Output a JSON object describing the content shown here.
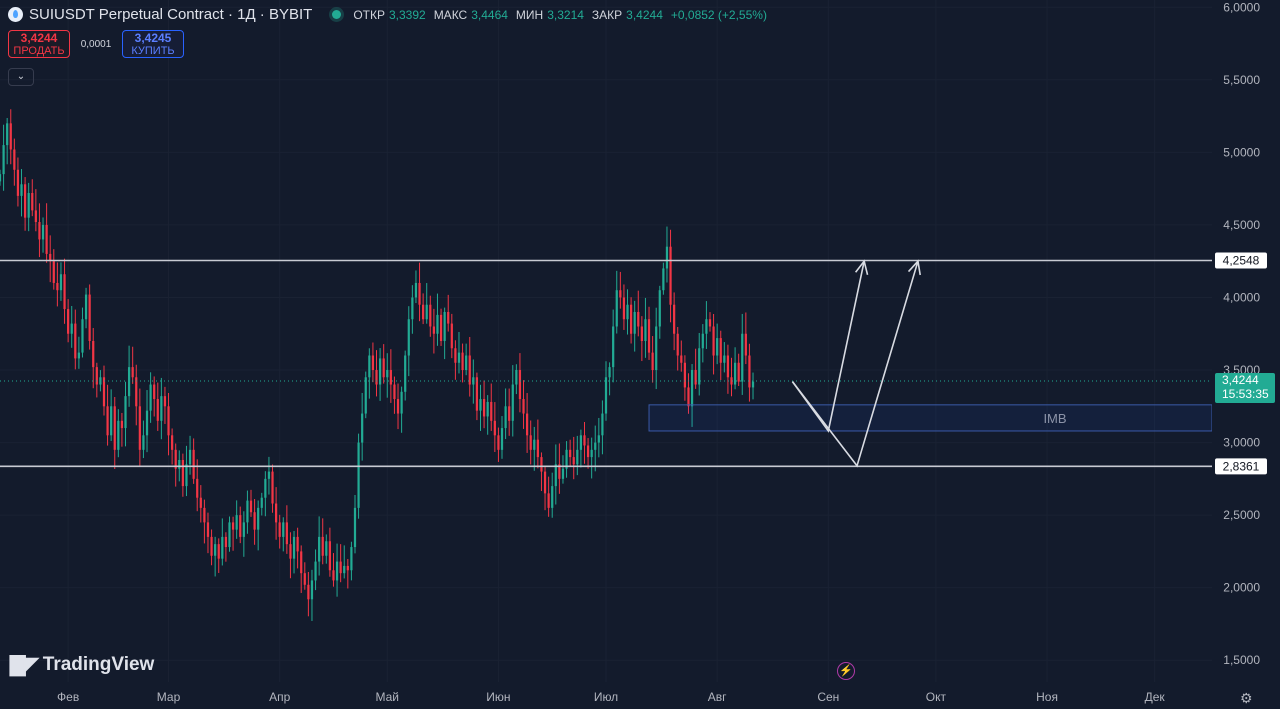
{
  "header": {
    "symbol": "SUIUSDT Perpetual Contract · 1Д · BYBIT",
    "ohlc": [
      {
        "label": "ОТКР",
        "value": "3,3392"
      },
      {
        "label": "МАКС",
        "value": "3,4464"
      },
      {
        "label": "МИН",
        "value": "3,3214"
      },
      {
        "label": "ЗАКР",
        "value": "3,4244"
      }
    ],
    "change": "+0,0852 (+2,55%)"
  },
  "trade": {
    "sell_price": "3,4244",
    "sell_label": "ПРОДАТЬ",
    "spread": "0,0001",
    "buy_price": "3,4245",
    "buy_label": "КУПИТЬ"
  },
  "branding": "TradingView",
  "colors": {
    "up": "#22ab94",
    "down": "#f23645",
    "background": "#131b2c",
    "accent": "#2962ff"
  },
  "chart_data": {
    "type": "candlestick",
    "title": "SUIUSDT Perpetual Contract · 1Д · BYBIT",
    "y_ticks": [
      "1,5000",
      "2,0000",
      "2,5000",
      "3,0000",
      "3,5000",
      "4,0000",
      "4,5000",
      "5,0000",
      "5,5000",
      "6,0000"
    ],
    "ylim": [
      1.35,
      6.05
    ],
    "x_ticks": [
      "Фев",
      "Мар",
      "Апр",
      "Май",
      "Июн",
      "Июл",
      "Авг",
      "Сен",
      "Окт",
      "Ноя",
      "Дек"
    ],
    "x_tick_dates": [
      "2025-02-01",
      "2025-03-01",
      "2025-04-01",
      "2025-05-01",
      "2025-06-01",
      "2025-07-01",
      "2025-08-01",
      "2025-09-01",
      "2025-10-01",
      "2025-11-01",
      "2025-12-01"
    ],
    "x_range": [
      "2025-01-13",
      "2025-12-17"
    ],
    "approx_closes": {
      "start_date": "2025-01-13",
      "values": [
        4.85,
        5.05,
        5.2,
        5.02,
        4.88,
        4.7,
        4.78,
        4.55,
        4.72,
        4.6,
        4.52,
        4.4,
        4.5,
        4.3,
        4.25,
        4.1,
        4.05,
        4.16,
        3.92,
        3.75,
        3.82,
        3.58,
        3.62,
        3.85,
        4.02,
        3.7,
        3.52,
        3.4,
        3.45,
        3.25,
        3.05,
        3.25,
        2.95,
        3.15,
        3.1,
        3.32,
        3.52,
        3.45,
        3.25,
        2.95,
        3.05,
        3.22,
        3.4,
        3.3,
        3.15,
        3.32,
        3.25,
        3.05,
        2.95,
        2.82,
        2.88,
        2.7,
        2.85,
        2.95,
        2.75,
        2.62,
        2.55,
        2.45,
        2.35,
        2.22,
        2.3,
        2.2,
        2.35,
        2.28,
        2.45,
        2.4,
        2.5,
        2.35,
        2.45,
        2.6,
        2.52,
        2.4,
        2.55,
        2.62,
        2.75,
        2.8,
        2.58,
        2.45,
        2.35,
        2.45,
        2.3,
        2.2,
        2.35,
        2.25,
        2.1,
        2.02,
        1.92,
        2.05,
        2.18,
        2.35,
        2.22,
        2.32,
        2.12,
        2.05,
        2.18,
        2.1,
        2.15,
        2.12,
        2.28,
        2.55,
        3.0,
        3.2,
        3.45,
        3.6,
        3.5,
        3.4,
        3.58,
        3.45,
        3.5,
        3.4,
        3.3,
        3.2,
        3.35,
        3.6,
        3.85,
        4.0,
        4.1,
        3.95,
        3.85,
        3.95,
        3.8,
        3.75,
        3.88,
        3.7,
        3.9,
        3.82,
        3.65,
        3.55,
        3.62,
        3.5,
        3.6,
        3.4,
        3.45,
        3.22,
        3.3,
        3.18,
        3.28,
        3.15,
        3.05,
        2.95,
        3.1,
        3.25,
        3.15,
        3.4,
        3.5,
        3.3,
        3.2,
        3.05,
        2.95,
        3.02,
        2.9,
        2.8,
        2.65,
        2.55,
        2.7,
        2.85,
        2.75,
        2.82,
        2.95,
        2.9,
        2.85,
        2.95,
        3.05,
        2.98,
        2.9,
        2.95,
        3.0,
        3.05,
        3.2,
        3.45,
        3.52,
        3.8,
        4.05,
        4.0,
        3.85,
        3.95,
        3.75,
        3.9,
        3.8,
        3.7,
        3.85,
        3.62,
        3.5,
        3.8,
        4.05,
        4.2,
        4.35,
        3.95,
        3.75,
        3.6,
        3.55,
        3.38,
        3.25,
        3.5,
        3.4,
        3.65,
        3.75,
        3.85,
        3.8,
        3.6,
        3.72,
        3.55,
        3.6,
        3.45,
        3.4,
        3.55,
        3.42,
        3.75,
        3.6,
        3.38,
        3.42
      ]
    },
    "last_price": "3,4244",
    "last_price_value": 3.4244,
    "countdown": "15:53:35",
    "levels": [
      {
        "value": 4.2548,
        "label": "4,2548"
      },
      {
        "value": 2.8361,
        "label": "2,8361"
      }
    ],
    "imbalance_zone": {
      "label": "IMB",
      "low": 3.08,
      "high": 3.26
    },
    "projection_paths": [
      [
        [
          "2025-08-22",
          3.42
        ],
        [
          "2025-09-01",
          3.08
        ],
        [
          "2025-09-11",
          4.25
        ]
      ],
      [
        [
          "2025-08-22",
          3.42
        ],
        [
          "2025-09-09",
          2.84
        ],
        [
          "2025-09-26",
          4.25
        ]
      ]
    ]
  }
}
